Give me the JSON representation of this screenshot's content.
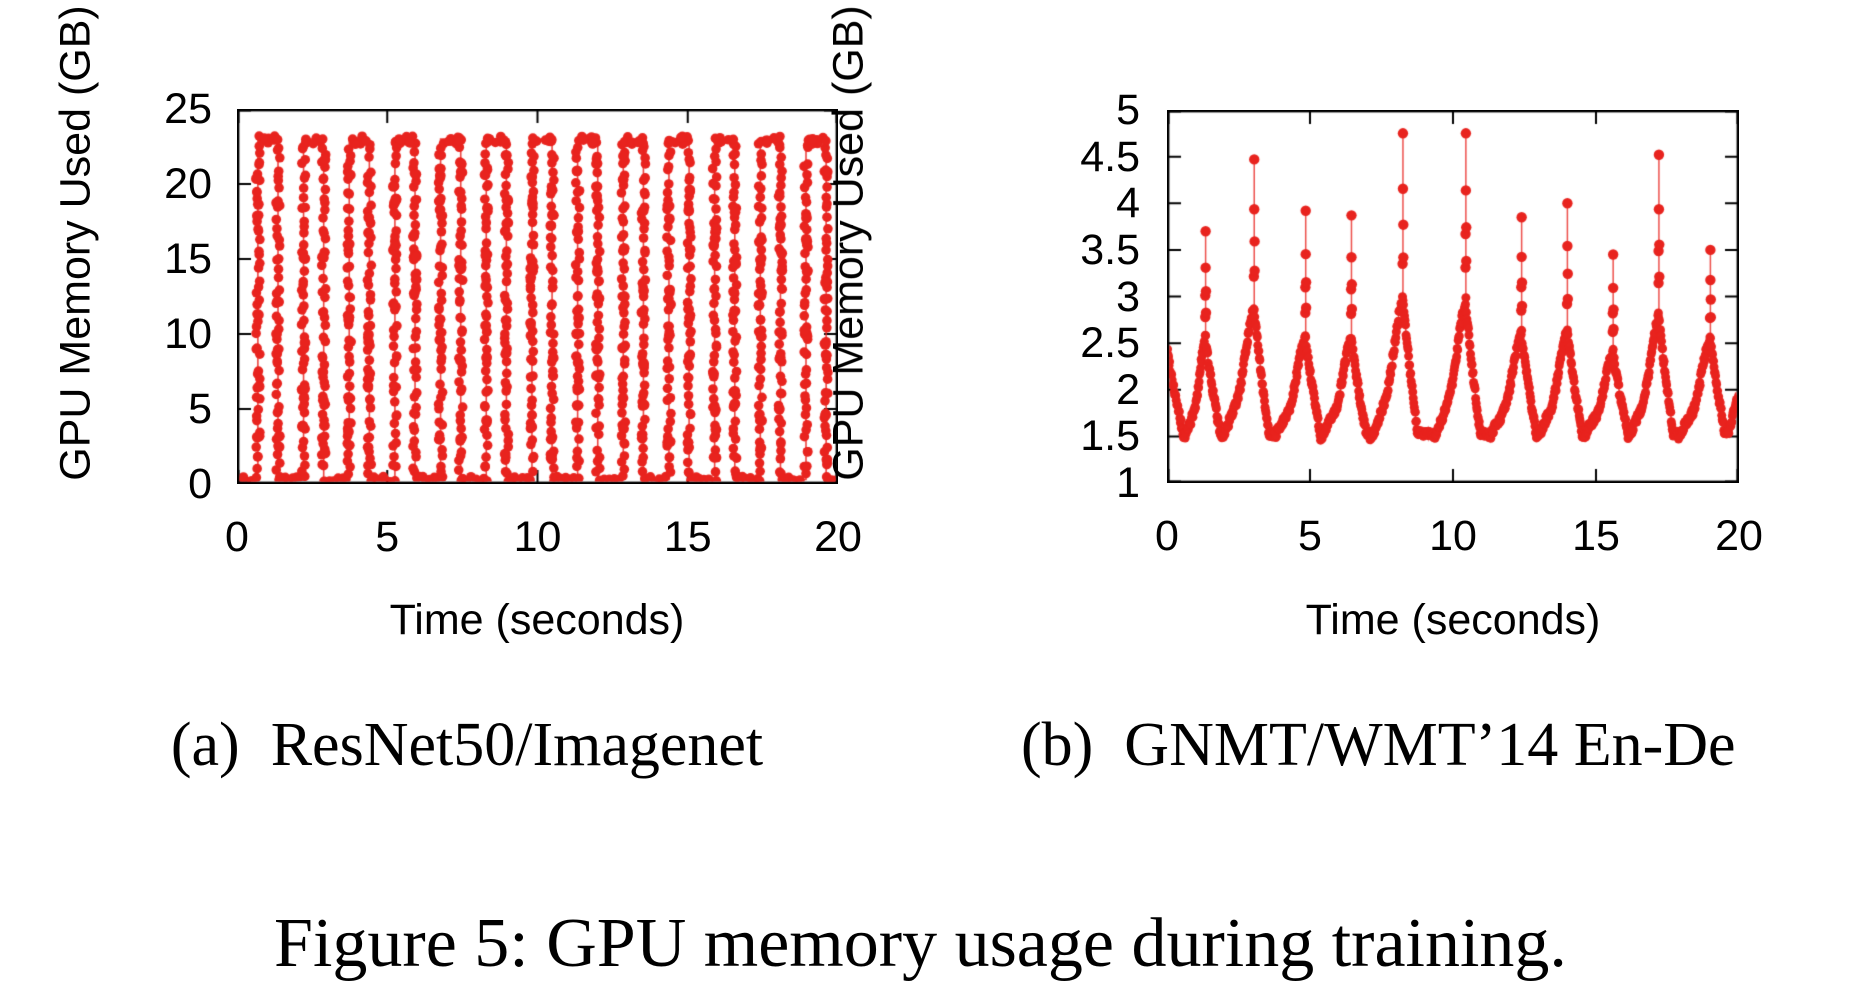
{
  "figure": {
    "caption": "Figure 5: GPU memory usage during training.",
    "text_color": "#000000",
    "background": "#ffffff"
  },
  "chart_data": [
    {
      "type": "scatter",
      "caption": "(a)  ResNet50/Imagenet",
      "xlabel": "Time (seconds)",
      "ylabel": "GPU Memory Used (GB)",
      "xlim": [
        0,
        20
      ],
      "ylim": [
        0,
        25
      ],
      "xticks": [
        0,
        5,
        10,
        15,
        20
      ],
      "yticks": [
        0,
        5,
        10,
        15,
        20,
        25
      ],
      "grid": false,
      "legend": "none",
      "color": "#e8231e",
      "pattern": {
        "description": "periodic training-step bursts: baseline ~0.3 GB, rapid ramp to ~23 GB plateau, rapid drop back to baseline",
        "baseline_gb": 0.3,
        "plateau_gb": 23.0,
        "burst_centers_s": [
          1.03,
          2.55,
          4.07,
          5.59,
          7.11,
          8.63,
          10.15,
          11.67,
          13.19,
          14.71,
          16.23,
          17.75,
          19.27
        ],
        "plateau_halfwidth_s": 0.335
      }
    },
    {
      "type": "scatter",
      "caption": "(b)  GNMT/WMT’14 En-De",
      "xlabel": "Time (seconds)",
      "ylabel": "GPU Memory Used (GB)",
      "xlim": [
        0,
        20
      ],
      "ylim": [
        1,
        5
      ],
      "xticks": [
        0,
        5,
        10,
        15,
        20
      ],
      "yticks": [
        1,
        1.5,
        2,
        2.5,
        3,
        3.5,
        4,
        4.5,
        5
      ],
      "grid": false,
      "legend": "none",
      "color": "#e8231e",
      "valley_gb": 1.5,
      "start_gb": 2.45,
      "end_gb": 2.0,
      "cycles": [
        {
          "peak_s": 1.35,
          "peak_gb": 2.55,
          "spike_gb": 3.7
        },
        {
          "peak_s": 3.05,
          "peak_gb": 2.9,
          "spike_gb": 4.47
        },
        {
          "peak_s": 4.85,
          "peak_gb": 2.55,
          "spike_gb": 3.92
        },
        {
          "peak_s": 6.45,
          "peak_gb": 2.55,
          "spike_gb": 3.87
        },
        {
          "peak_s": 8.25,
          "peak_gb": 3.0,
          "spike_gb": 4.75
        },
        {
          "peak_s": 10.45,
          "peak_gb": 2.95,
          "spike_gb": 4.75
        },
        {
          "peak_s": 12.4,
          "peak_gb": 2.6,
          "spike_gb": 3.85
        },
        {
          "peak_s": 14.0,
          "peak_gb": 2.65,
          "spike_gb": 4.0
        },
        {
          "peak_s": 15.6,
          "peak_gb": 2.4,
          "spike_gb": 3.45
        },
        {
          "peak_s": 17.2,
          "peak_gb": 2.8,
          "spike_gb": 4.52
        },
        {
          "peak_s": 19.0,
          "peak_gb": 2.55,
          "spike_gb": 3.5
        }
      ]
    }
  ]
}
